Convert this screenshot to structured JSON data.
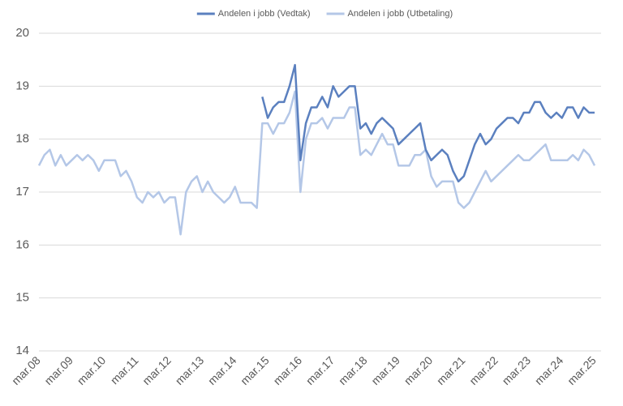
{
  "chart_data": {
    "type": "line",
    "categories": [
      "mar.08",
      null,
      null,
      null,
      null,
      null,
      "mar.09",
      null,
      null,
      null,
      null,
      null,
      "mar.10",
      null,
      null,
      null,
      null,
      null,
      "mar.11",
      null,
      null,
      null,
      null,
      null,
      "mar.12",
      null,
      null,
      null,
      null,
      null,
      "mar.13",
      null,
      null,
      null,
      null,
      null,
      "mar.14",
      null,
      null,
      null,
      null,
      null,
      "mar.15",
      null,
      null,
      null,
      null,
      null,
      "mar.16",
      null,
      null,
      null,
      null,
      null,
      "mar.17",
      null,
      null,
      null,
      null,
      null,
      "mar.18",
      null,
      null,
      null,
      null,
      null,
      "mar.19",
      null,
      null,
      null,
      null,
      null,
      "mar.20",
      null,
      null,
      null,
      null,
      null,
      "mar.21",
      null,
      null,
      null,
      null,
      null,
      "mar.22",
      null,
      null,
      null,
      null,
      null,
      "mar.23",
      null,
      null,
      null,
      null,
      null,
      "mar.24",
      null,
      null,
      null,
      null,
      null,
      "mar.25"
    ],
    "series": [
      {
        "name": "Andelen i jobb (Vedtak)",
        "color": "#5b80bf",
        "values": [
          null,
          null,
          null,
          null,
          null,
          null,
          null,
          null,
          null,
          null,
          null,
          null,
          null,
          null,
          null,
          null,
          null,
          null,
          null,
          null,
          null,
          null,
          null,
          null,
          null,
          null,
          null,
          null,
          null,
          null,
          null,
          null,
          null,
          null,
          null,
          null,
          null,
          null,
          null,
          null,
          null,
          18.8,
          18.4,
          18.6,
          18.7,
          18.7,
          19.0,
          19.4,
          17.6,
          18.3,
          18.6,
          18.6,
          18.8,
          18.6,
          19.0,
          18.8,
          18.9,
          19.0,
          19.0,
          18.2,
          18.3,
          18.1,
          18.3,
          18.4,
          18.3,
          18.2,
          17.9,
          18.0,
          18.1,
          18.2,
          18.3,
          17.8,
          17.6,
          17.7,
          17.8,
          17.7,
          17.4,
          17.2,
          17.3,
          17.6,
          17.9,
          18.1,
          17.9,
          18.0,
          18.2,
          18.3,
          18.4,
          18.4,
          18.3,
          18.5,
          18.5,
          18.7,
          18.7,
          18.5,
          18.4,
          18.5,
          18.4,
          18.6,
          18.6,
          18.4,
          18.6,
          18.5,
          18.5
        ]
      },
      {
        "name": "Andelen i jobb (Utbetaling)",
        "color": "#b4c7e7",
        "values": [
          17.5,
          17.7,
          17.8,
          17.5,
          17.7,
          17.5,
          17.6,
          17.7,
          17.6,
          17.7,
          17.6,
          17.4,
          17.6,
          17.6,
          17.6,
          17.3,
          17.4,
          17.2,
          16.9,
          16.8,
          17.0,
          16.9,
          17.0,
          16.8,
          16.9,
          16.9,
          16.2,
          17.0,
          17.2,
          17.3,
          17.0,
          17.2,
          17.0,
          16.9,
          16.8,
          16.9,
          17.1,
          16.8,
          16.8,
          16.8,
          16.7,
          18.3,
          18.3,
          18.1,
          18.3,
          18.3,
          18.5,
          18.9,
          17.0,
          18.0,
          18.3,
          18.3,
          18.4,
          18.2,
          18.4,
          18.4,
          18.4,
          18.6,
          18.6,
          17.7,
          17.8,
          17.7,
          17.9,
          18.1,
          17.9,
          17.9,
          17.5,
          17.5,
          17.5,
          17.7,
          17.7,
          17.8,
          17.3,
          17.1,
          17.2,
          17.2,
          17.2,
          16.8,
          16.7,
          16.8,
          17.0,
          17.2,
          17.4,
          17.2,
          17.3,
          17.4,
          17.5,
          17.6,
          17.7,
          17.6,
          17.6,
          17.7,
          17.8,
          17.9,
          17.6,
          17.6,
          17.6,
          17.6,
          17.7,
          17.6,
          17.8,
          17.7,
          17.5
        ]
      }
    ],
    "ylim": [
      14,
      20
    ],
    "yticks": [
      14,
      15,
      16,
      17,
      18,
      19,
      20
    ],
    "grid": true,
    "legend": "top"
  }
}
